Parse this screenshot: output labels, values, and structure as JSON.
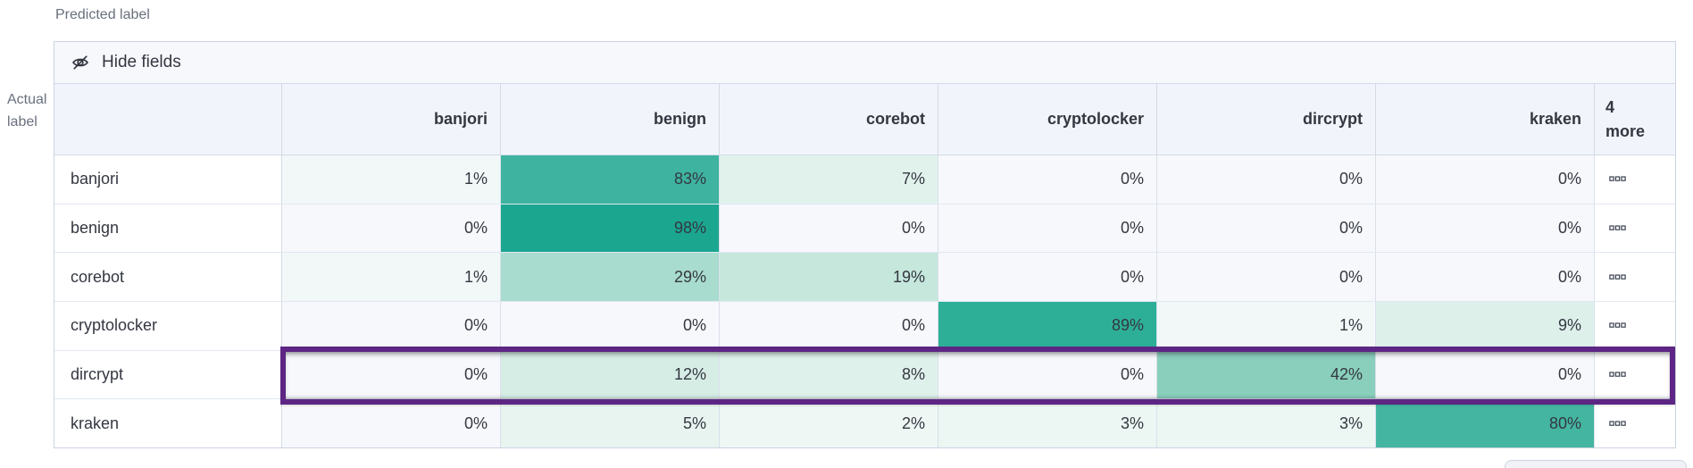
{
  "labels": {
    "predicted_axis": "Predicted label",
    "actual_axis": "Actual label"
  },
  "toolbar": {
    "hide_fields_label": "Hide fields"
  },
  "table": {
    "columns": [
      "banjori",
      "benign",
      "corebot",
      "cryptolocker",
      "dircrypt",
      "kraken"
    ],
    "more_header": {
      "count": "4",
      "word": "more"
    },
    "rows": [
      {
        "label": "banjori",
        "values": [
          "1%",
          "83%",
          "7%",
          "0%",
          "0%",
          "0%"
        ],
        "colors": [
          "#F2F8F8",
          "#3EB3A0",
          "#E1F2EC",
          "#F6F8FB",
          "#F6F8FB",
          "#F6F8FB"
        ],
        "highlighted": false
      },
      {
        "label": "benign",
        "values": [
          "0%",
          "98%",
          "0%",
          "0%",
          "0%",
          "0%"
        ],
        "colors": [
          "#F6F8FB",
          "#1BA690",
          "#F6F8FB",
          "#F6F8FB",
          "#F6F8FB",
          "#F6F8FB"
        ],
        "highlighted": false
      },
      {
        "label": "corebot",
        "values": [
          "1%",
          "29%",
          "19%",
          "0%",
          "0%",
          "0%"
        ],
        "colors": [
          "#F2F8F8",
          "#A8DCCE",
          "#C5E7DC",
          "#F6F8FB",
          "#F6F8FB",
          "#F6F8FB"
        ],
        "highlighted": false
      },
      {
        "label": "cryptolocker",
        "values": [
          "0%",
          "0%",
          "0%",
          "89%",
          "1%",
          "9%"
        ],
        "colors": [
          "#F6F8FB",
          "#F6F8FB",
          "#F6F8FB",
          "#2DAF97",
          "#F2F8F8",
          "#DDF0EA"
        ],
        "highlighted": false
      },
      {
        "label": "dircrypt",
        "values": [
          "0%",
          "12%",
          "8%",
          "0%",
          "42%",
          "0%"
        ],
        "colors": [
          "#F6F8FB",
          "#D6EDE5",
          "#DFF1EB",
          "#F6F8FB",
          "#89CFBC",
          "#F6F8FB"
        ],
        "highlighted": true
      },
      {
        "label": "kraken",
        "values": [
          "0%",
          "5%",
          "2%",
          "3%",
          "3%",
          "80%"
        ],
        "colors": [
          "#F6F8FB",
          "#E7F4EF",
          "#EFF7F4",
          "#ECF6F2",
          "#ECF6F2",
          "#44B5A1"
        ],
        "highlighted": false
      }
    ]
  },
  "colors": {
    "highlight_border": "#5D2684",
    "header_background": "#F1F4FA",
    "toolbar_background": "#F7F8FC",
    "heat_max": "#1BA690",
    "heat_min": "#F6F8FB",
    "text": "#343741",
    "axis_text": "#69707D",
    "grid_border": "#D3DAE6"
  },
  "chart_data": {
    "type": "heatmap",
    "title": "Confusion matrix",
    "xlabel": "Predicted label",
    "ylabel": "Actual label",
    "x_categories": [
      "banjori",
      "benign",
      "corebot",
      "cryptolocker",
      "dircrypt",
      "kraken"
    ],
    "y_categories": [
      "banjori",
      "benign",
      "corebot",
      "cryptolocker",
      "dircrypt",
      "kraken"
    ],
    "values_percent": [
      [
        1,
        83,
        7,
        0,
        0,
        0
      ],
      [
        0,
        98,
        0,
        0,
        0,
        0
      ],
      [
        1,
        29,
        19,
        0,
        0,
        0
      ],
      [
        0,
        0,
        0,
        89,
        1,
        9
      ],
      [
        0,
        12,
        8,
        0,
        42,
        0
      ],
      [
        0,
        5,
        2,
        3,
        3,
        80
      ]
    ],
    "hidden_columns_count": 4,
    "highlighted_row": "dircrypt",
    "legend_position": "none",
    "grid": true
  }
}
